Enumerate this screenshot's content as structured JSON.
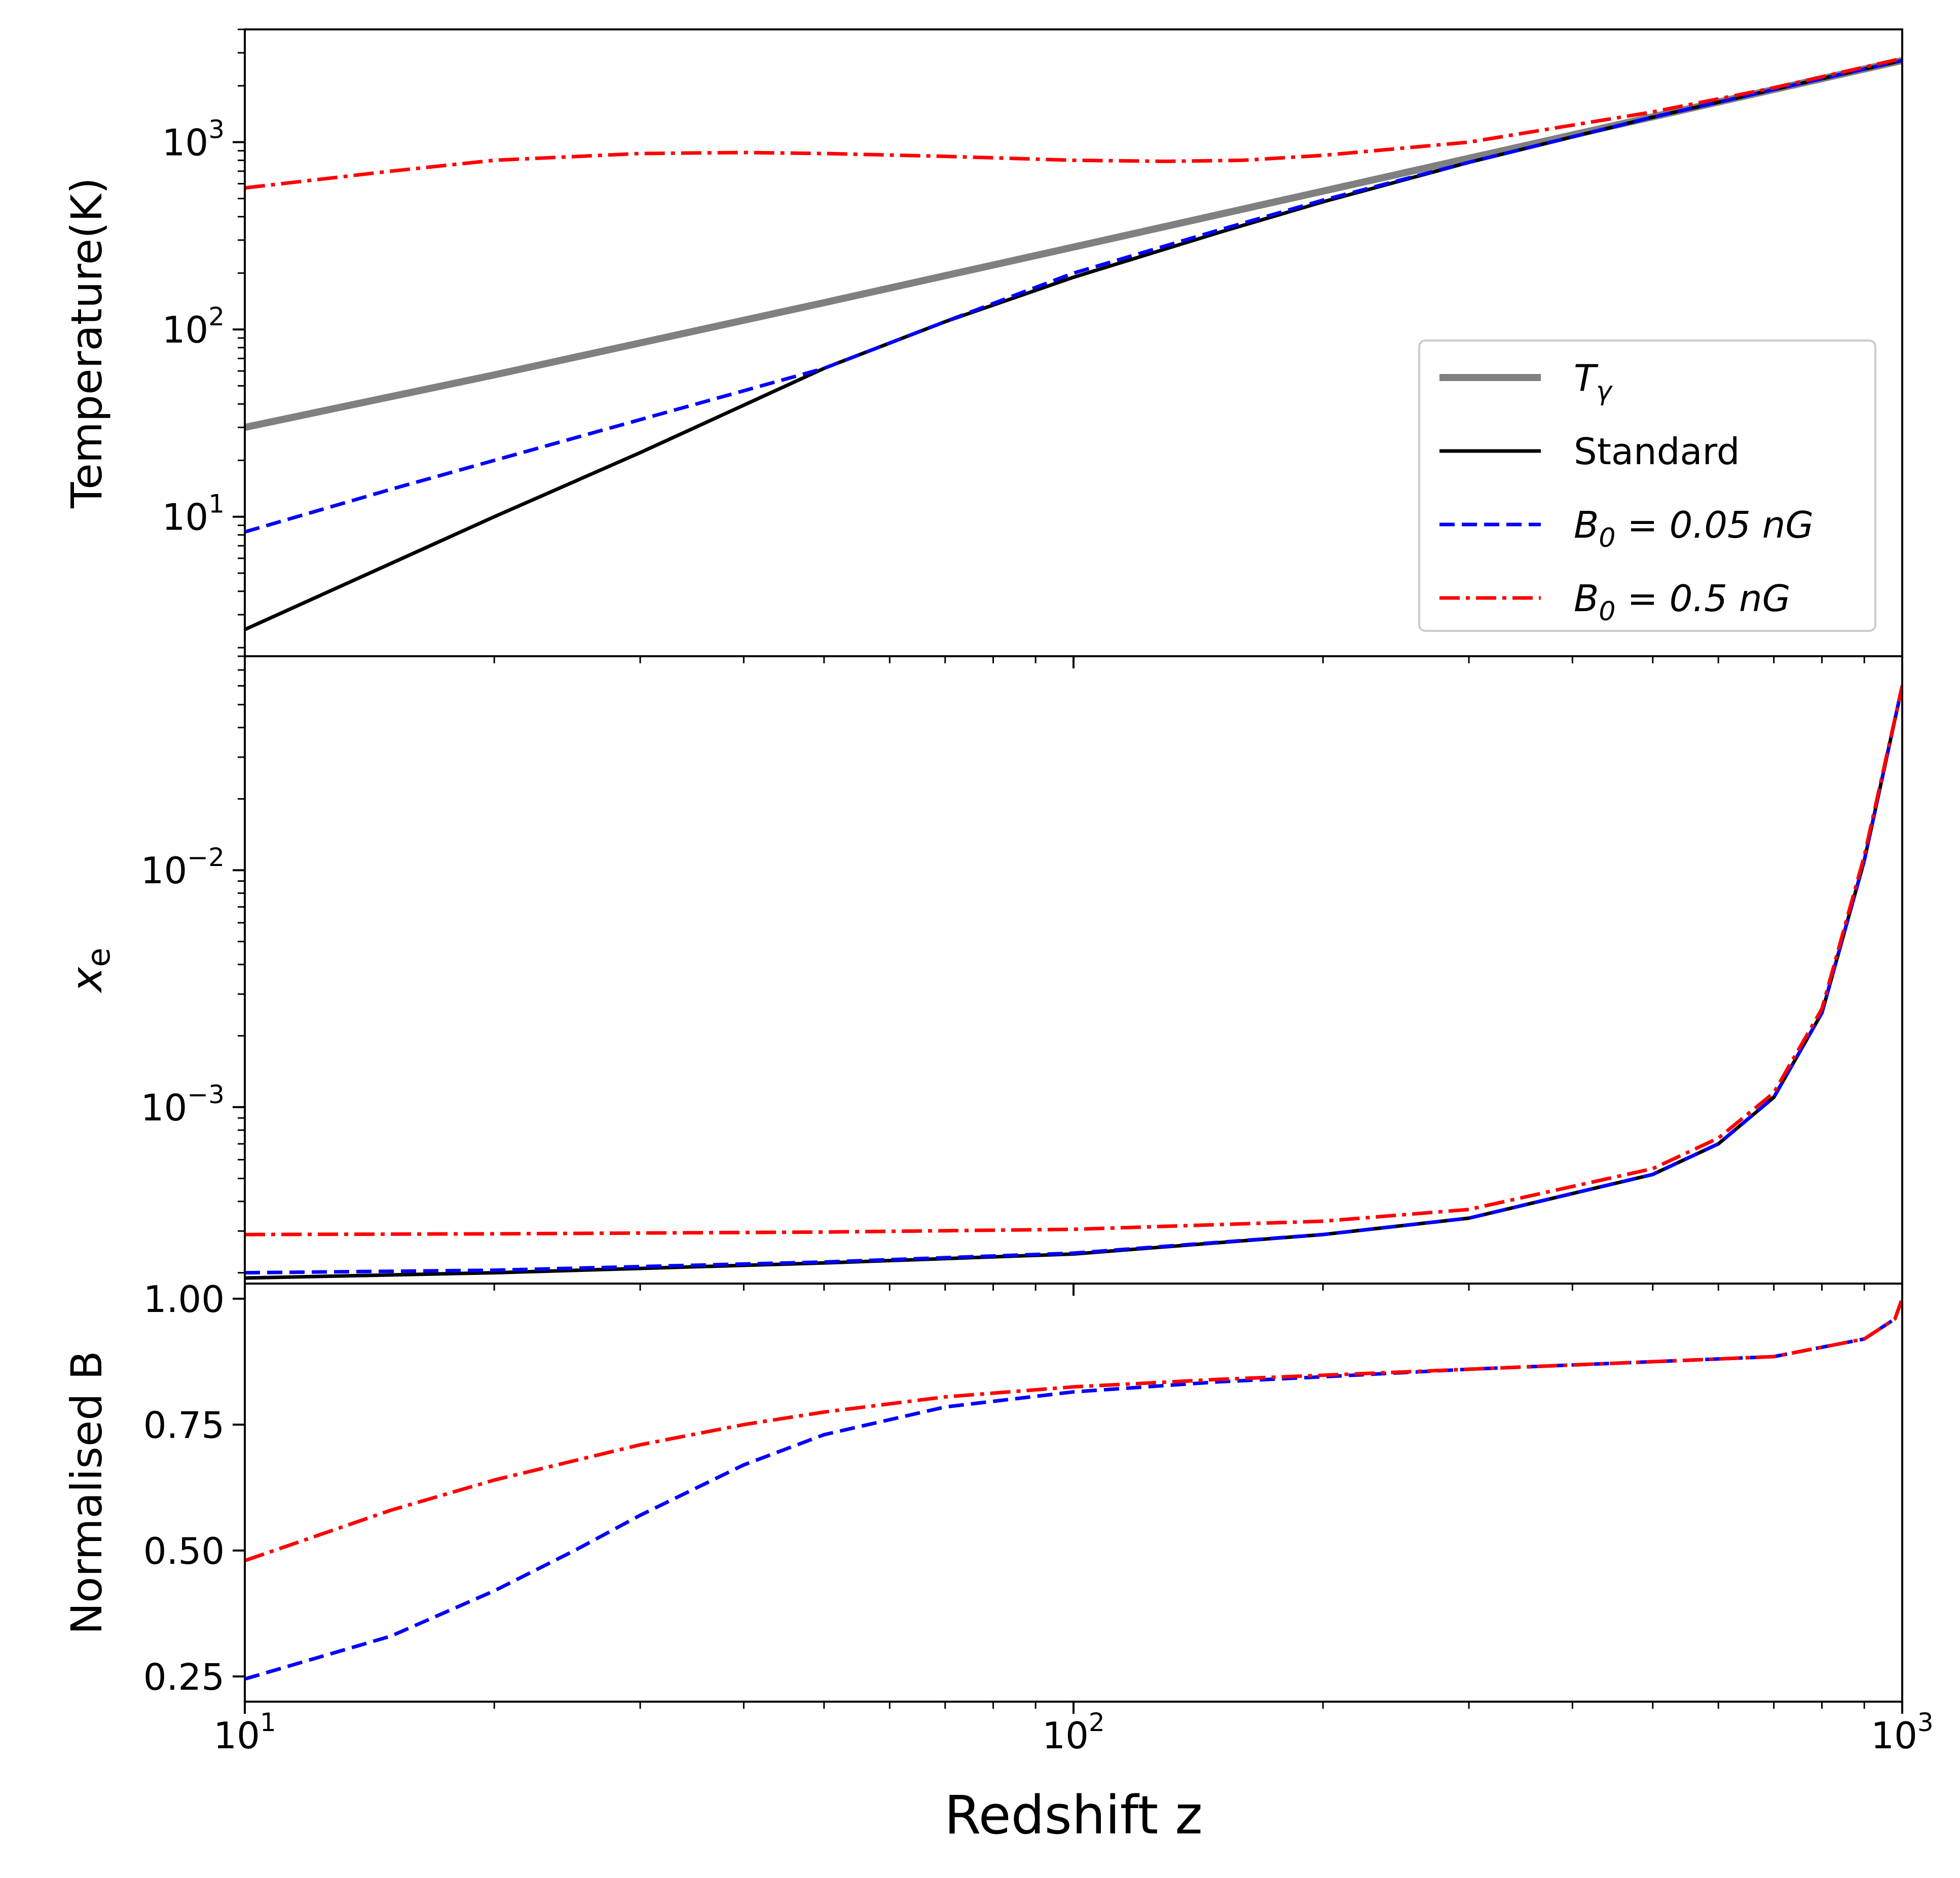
{
  "chart_data": {
    "type": "line",
    "xscale": "log",
    "xlim": [
      10,
      1000
    ],
    "xlabel": "Redshift z",
    "x_ticks": [
      {
        "value": 10,
        "base": "10",
        "exp": "1"
      },
      {
        "value": 100,
        "base": "10",
        "exp": "2"
      },
      {
        "value": 1000,
        "base": "10",
        "exp": "3"
      }
    ],
    "colors": {
      "T_gamma": "#808080",
      "standard": "#000000",
      "b005": "#0000ff",
      "b05": "#ff0000"
    },
    "legend": {
      "placement": "lower-right of top panel",
      "entries": [
        {
          "key": "T_gamma",
          "base": "T",
          "sub": "γ",
          "rest": ""
        },
        {
          "key": "standard",
          "base": "Standard",
          "sub": "",
          "rest": ""
        },
        {
          "key": "b005",
          "base": "B",
          "sub": "0",
          "rest": " = 0.05 nG"
        },
        {
          "key": "b05",
          "base": "B",
          "sub": "0",
          "rest": " = 0.5 nG"
        }
      ]
    },
    "panels": [
      {
        "id": "temperature",
        "ylabel": "Temperature(K)",
        "yscale": "log",
        "ylim": [
          1.8,
          4000
        ],
        "y_ticks": [
          {
            "value": 10,
            "base": "10",
            "exp": "1"
          },
          {
            "value": 100,
            "base": "10",
            "exp": "2"
          },
          {
            "value": 1000,
            "base": "10",
            "exp": "3"
          }
        ],
        "series": [
          {
            "key": "T_gamma",
            "name": "Tγ",
            "style": "solid-thick",
            "x": [
              10,
              20,
              50,
              100,
              200,
              500,
              1000
            ],
            "y": [
              30,
              57.2,
              139,
              275.2,
              547.7,
              1365,
              2728
            ]
          },
          {
            "key": "standard",
            "name": "Standard",
            "style": "solid",
            "x": [
              10,
              20,
              30,
              50,
              70,
              100,
              150,
              200,
              300,
              500,
              700,
              1000
            ],
            "y": [
              2.5,
              10,
              22,
              62,
              110,
              190,
              330,
              480,
              780,
              1360,
              1910,
              2728
            ]
          },
          {
            "key": "b005",
            "name": "B0 = 0.05 nG",
            "style": "dashed",
            "x": [
              10,
              15,
              20,
              30,
              50,
              70,
              100,
              150,
              200,
              300,
              500,
              700,
              1000
            ],
            "y": [
              8.3,
              14,
              20,
              33,
              62,
              110,
              200,
              340,
              490,
              780,
              1360,
              1910,
              2728
            ]
          },
          {
            "key": "b05",
            "name": "B0 = 0.5 nG",
            "style": "dashdot",
            "x": [
              10,
              15,
              20,
              30,
              40,
              50,
              70,
              100,
              130,
              160,
              200,
              300,
              500,
              700,
              1000
            ],
            "y": [
              570,
              700,
              800,
              870,
              880,
              870,
              840,
              800,
              790,
              800,
              850,
              1000,
              1450,
              1950,
              2800
            ]
          }
        ]
      },
      {
        "id": "ionization",
        "ylabel": "x_e",
        "ylabel_main": "x",
        "ylabel_sub": "e",
        "yscale": "log",
        "ylim": [
          0.00018,
          0.08
        ],
        "y_ticks": [
          {
            "value": 0.001,
            "base": "10",
            "exp": "−3"
          },
          {
            "value": 0.01,
            "base": "10",
            "exp": "−2"
          }
        ],
        "series": [
          {
            "key": "standard",
            "name": "Standard",
            "style": "solid",
            "x": [
              10,
              20,
              50,
              100,
              200,
              300,
              500,
              600,
              700,
              800,
              900,
              1000
            ],
            "y": [
              0.00019,
              0.0002,
              0.00022,
              0.00024,
              0.00029,
              0.00034,
              0.00052,
              0.0007,
              0.0011,
              0.0025,
              0.011,
              0.06
            ]
          },
          {
            "key": "b005",
            "name": "B0 = 0.05 nG",
            "style": "dashed",
            "x": [
              10,
              20,
              50,
              100,
              200,
              300,
              500,
              600,
              700,
              800,
              900,
              1000
            ],
            "y": [
              0.0002,
              0.000205,
              0.000222,
              0.000242,
              0.00029,
              0.00034,
              0.00052,
              0.0007,
              0.0011,
              0.0025,
              0.011,
              0.06
            ]
          },
          {
            "key": "b05",
            "name": "B0 = 0.5 nG",
            "style": "dashdot",
            "x": [
              10,
              20,
              50,
              100,
              200,
              300,
              500,
              600,
              700,
              800,
              900,
              1000
            ],
            "y": [
              0.00029,
              0.000292,
              0.000297,
              0.000305,
              0.00033,
              0.00037,
              0.00055,
              0.00074,
              0.00115,
              0.0026,
              0.0115,
              0.06
            ]
          }
        ]
      },
      {
        "id": "magnetic",
        "ylabel": "Normalised B",
        "yscale": "linear",
        "ylim": [
          0.2,
          1.03
        ],
        "y_ticks": [
          {
            "value": 0.25,
            "label": "0.25"
          },
          {
            "value": 0.5,
            "label": "0.50"
          },
          {
            "value": 0.75,
            "label": "0.75"
          },
          {
            "value": 1.0,
            "label": "1.00"
          }
        ],
        "series": [
          {
            "key": "b005",
            "name": "B0 = 0.05 nG",
            "style": "dashed",
            "x": [
              10,
              15,
              20,
              25,
              30,
              40,
              50,
              70,
              100,
              150,
              200,
              300,
              500,
              700,
              900,
              980,
              1000
            ],
            "y": [
              0.245,
              0.33,
              0.42,
              0.5,
              0.57,
              0.67,
              0.73,
              0.785,
              0.815,
              0.835,
              0.845,
              0.86,
              0.875,
              0.885,
              0.92,
              0.96,
              1.0
            ]
          },
          {
            "key": "b05",
            "name": "B0 = 0.5 nG",
            "style": "dashdot",
            "x": [
              10,
              15,
              20,
              30,
              40,
              50,
              70,
              100,
              150,
              200,
              300,
              500,
              700,
              900,
              980,
              1000
            ],
            "y": [
              0.48,
              0.58,
              0.64,
              0.71,
              0.75,
              0.775,
              0.805,
              0.825,
              0.84,
              0.848,
              0.86,
              0.875,
              0.885,
              0.92,
              0.96,
              1.0
            ]
          }
        ]
      }
    ]
  }
}
